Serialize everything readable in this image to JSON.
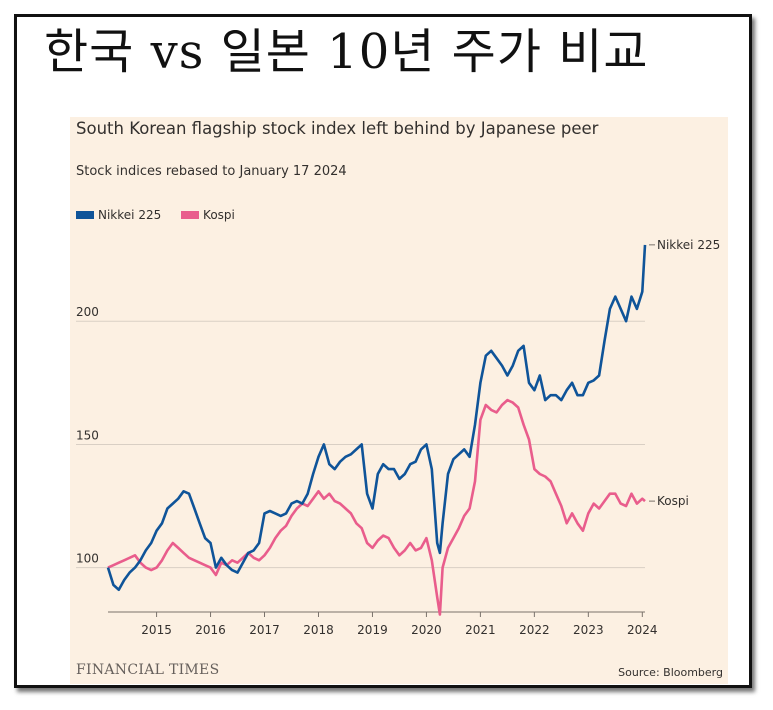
{
  "header": {
    "title": "한국 vs 일본 10년 주가 비교"
  },
  "chart": {
    "title": "South Korean flagship stock index left behind by Japanese peer",
    "subtitle": "Stock indices rebased to January 17 2024",
    "legend": [
      {
        "name": "Nikkei 225",
        "color": "#0f5499"
      },
      {
        "name": "Kospi",
        "color": "#e95d8c"
      }
    ],
    "source": "Source: Bloomberg",
    "brand": "FINANCIAL TIMES"
  },
  "chart_data": {
    "type": "line",
    "title": "South Korean flagship stock index left behind by Japanese peer",
    "subtitle": "Stock indices rebased to January 17 2024",
    "xlabel": "",
    "ylabel": "",
    "xlim": [
      2014.1,
      2024.05
    ],
    "ylim": [
      82,
      235
    ],
    "yticks": [
      100,
      150,
      200
    ],
    "xticks": [
      "2015",
      "2016",
      "2017",
      "2018",
      "2019",
      "2020",
      "2021",
      "2022",
      "2023",
      "2024"
    ],
    "grid": true,
    "legend_position": "top-left",
    "series": [
      {
        "name": "Nikkei 225",
        "color": "#0f5499",
        "end_label": "Nikkei 225",
        "x": [
          2014.1,
          2014.2,
          2014.3,
          2014.4,
          2014.5,
          2014.6,
          2014.7,
          2014.8,
          2014.9,
          2015.0,
          2015.1,
          2015.2,
          2015.3,
          2015.4,
          2015.5,
          2015.6,
          2015.7,
          2015.8,
          2015.9,
          2016.0,
          2016.1,
          2016.2,
          2016.3,
          2016.4,
          2016.5,
          2016.6,
          2016.7,
          2016.8,
          2016.9,
          2017.0,
          2017.1,
          2017.2,
          2017.3,
          2017.4,
          2017.5,
          2017.6,
          2017.7,
          2017.8,
          2017.9,
          2018.0,
          2018.1,
          2018.2,
          2018.3,
          2018.4,
          2018.5,
          2018.6,
          2018.7,
          2018.8,
          2018.9,
          2019.0,
          2019.1,
          2019.2,
          2019.3,
          2019.4,
          2019.5,
          2019.6,
          2019.7,
          2019.8,
          2019.9,
          2020.0,
          2020.1,
          2020.2,
          2020.25,
          2020.3,
          2020.4,
          2020.5,
          2020.6,
          2020.7,
          2020.8,
          2020.9,
          2021.0,
          2021.1,
          2021.2,
          2021.3,
          2021.4,
          2021.5,
          2021.6,
          2021.7,
          2021.8,
          2021.9,
          2022.0,
          2022.1,
          2022.2,
          2022.3,
          2022.4,
          2022.5,
          2022.6,
          2022.7,
          2022.8,
          2022.9,
          2023.0,
          2023.1,
          2023.2,
          2023.3,
          2023.4,
          2023.5,
          2023.6,
          2023.7,
          2023.8,
          2023.9,
          2024.0,
          2024.05
        ],
        "values": [
          100,
          93,
          91,
          95,
          98,
          100,
          103,
          107,
          110,
          115,
          118,
          124,
          126,
          128,
          131,
          130,
          124,
          118,
          112,
          110,
          100,
          104,
          101,
          99,
          98,
          102,
          106,
          107,
          110,
          122,
          123,
          122,
          121,
          122,
          126,
          127,
          126,
          130,
          138,
          145,
          150,
          142,
          140,
          143,
          145,
          146,
          148,
          150,
          130,
          124,
          138,
          142,
          140,
          140,
          136,
          138,
          142,
          143,
          148,
          150,
          140,
          110,
          106,
          118,
          138,
          144,
          146,
          148,
          145,
          158,
          175,
          186,
          188,
          185,
          182,
          178,
          182,
          188,
          190,
          175,
          172,
          178,
          168,
          170,
          170,
          168,
          172,
          175,
          170,
          170,
          175,
          176,
          178,
          192,
          205,
          210,
          205,
          200,
          210,
          205,
          212,
          231
        ]
      },
      {
        "name": "Kospi",
        "color": "#e95d8c",
        "end_label": "Kospi",
        "x": [
          2014.1,
          2014.2,
          2014.3,
          2014.4,
          2014.5,
          2014.6,
          2014.7,
          2014.8,
          2014.9,
          2015.0,
          2015.1,
          2015.2,
          2015.3,
          2015.4,
          2015.5,
          2015.6,
          2015.7,
          2015.8,
          2015.9,
          2016.0,
          2016.1,
          2016.2,
          2016.3,
          2016.4,
          2016.5,
          2016.6,
          2016.7,
          2016.8,
          2016.9,
          2017.0,
          2017.1,
          2017.2,
          2017.3,
          2017.4,
          2017.5,
          2017.6,
          2017.7,
          2017.8,
          2017.9,
          2018.0,
          2018.1,
          2018.2,
          2018.3,
          2018.4,
          2018.5,
          2018.6,
          2018.7,
          2018.8,
          2018.9,
          2019.0,
          2019.1,
          2019.2,
          2019.3,
          2019.4,
          2019.5,
          2019.6,
          2019.7,
          2019.8,
          2019.9,
          2020.0,
          2020.1,
          2020.2,
          2020.25,
          2020.3,
          2020.4,
          2020.5,
          2020.6,
          2020.7,
          2020.8,
          2020.9,
          2021.0,
          2021.1,
          2021.2,
          2021.3,
          2021.4,
          2021.5,
          2021.6,
          2021.7,
          2021.8,
          2021.9,
          2022.0,
          2022.1,
          2022.2,
          2022.3,
          2022.4,
          2022.5,
          2022.6,
          2022.7,
          2022.8,
          2022.9,
          2023.0,
          2023.1,
          2023.2,
          2023.3,
          2023.4,
          2023.5,
          2023.6,
          2023.7,
          2023.8,
          2023.9,
          2024.0,
          2024.05
        ],
        "values": [
          100,
          101,
          102,
          103,
          104,
          105,
          102,
          100,
          99,
          100,
          103,
          107,
          110,
          108,
          106,
          104,
          103,
          102,
          101,
          100,
          97,
          102,
          101,
          103,
          102,
          104,
          106,
          104,
          103,
          105,
          108,
          112,
          115,
          117,
          121,
          124,
          126,
          125,
          128,
          131,
          128,
          130,
          127,
          126,
          124,
          122,
          118,
          116,
          110,
          108,
          111,
          113,
          112,
          108,
          105,
          107,
          110,
          107,
          108,
          112,
          103,
          88,
          81,
          100,
          108,
          112,
          116,
          121,
          124,
          135,
          160,
          166,
          164,
          163,
          166,
          168,
          167,
          165,
          158,
          152,
          140,
          138,
          137,
          135,
          130,
          125,
          118,
          122,
          118,
          115,
          122,
          126,
          124,
          127,
          130,
          130,
          126,
          125,
          130,
          126,
          128,
          127
        ]
      }
    ]
  }
}
